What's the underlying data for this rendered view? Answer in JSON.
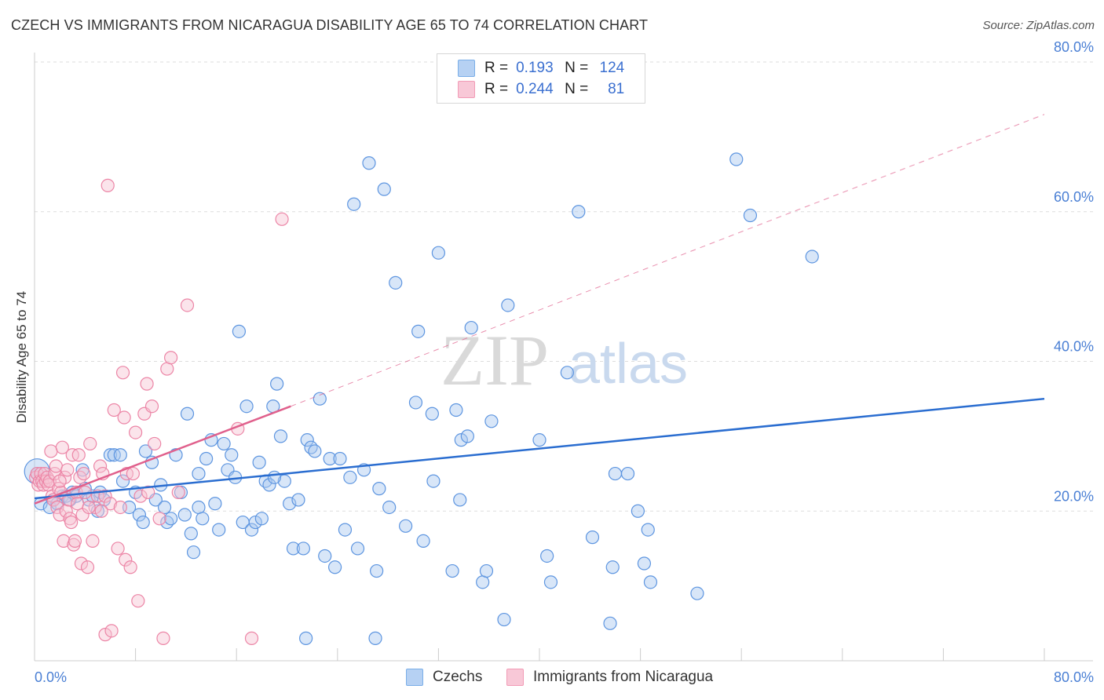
{
  "header": {
    "title": "CZECH VS IMMIGRANTS FROM NICARAGUA DISABILITY AGE 65 TO 74 CORRELATION CHART",
    "source": "Source: ZipAtlas.com"
  },
  "watermark": {
    "zip": "ZIP",
    "atlas": "atlas"
  },
  "legend": {
    "rows": [
      {
        "r_label": "R =",
        "r_value": "0.193",
        "n_label": "N =",
        "n_value": "124",
        "color": "#7aaee8"
      },
      {
        "r_label": "R =",
        "r_value": "0.244",
        "n_label": "N =",
        "n_value": "81",
        "color": "#f29bb6"
      }
    ]
  },
  "bottom_legend": {
    "czechs": "Czechs",
    "nicaragua": "Immigrants from Nicaragua"
  },
  "colors": {
    "czech_fill": "#a9c8f0",
    "czech_stroke": "#5d95e0",
    "czech_line": "#2a6dd0",
    "nic_fill": "#f7c3d3",
    "nic_stroke": "#ec85a6",
    "nic_line": "#e0608c",
    "tick": "#4a7fd4"
  },
  "chart_data": {
    "type": "scatter",
    "title": "CZECH VS IMMIGRANTS FROM NICARAGUA DISABILITY AGE 65 TO 74 CORRELATION CHART",
    "xlabel": "",
    "ylabel": "Disability Age 65 to 74",
    "xlim": [
      0,
      80
    ],
    "ylim": [
      0,
      80
    ],
    "x_tick_labels": [
      "0.0%",
      "80.0%"
    ],
    "y_tick_labels": [
      {
        "value": 20,
        "label": "20.0%"
      },
      {
        "value": 40,
        "label": "40.0%"
      },
      {
        "value": 60,
        "label": "60.0%"
      },
      {
        "value": 80,
        "label": "80.0%"
      }
    ],
    "grid": true,
    "legend_position": "top-center",
    "series": [
      {
        "name": "Czechs",
        "r": 0.193,
        "n": 124,
        "trend": {
          "x": [
            0,
            80
          ],
          "y": [
            21.7,
            35.0
          ],
          "style": "solid"
        },
        "points": [
          [
            0.2,
            25.0
          ],
          [
            0.5,
            21.0
          ],
          [
            1.2,
            20.5
          ],
          [
            1.5,
            21.5
          ],
          [
            1.8,
            21.0
          ],
          [
            2.2,
            22.0
          ],
          [
            2.5,
            22.0
          ],
          [
            2.8,
            21.5
          ],
          [
            3.0,
            22.5
          ],
          [
            3.3,
            22.0
          ],
          [
            3.8,
            25.5
          ],
          [
            4.0,
            23.0
          ],
          [
            4.3,
            21.5
          ],
          [
            4.6,
            22.0
          ],
          [
            5.0,
            20.0
          ],
          [
            5.2,
            22.5
          ],
          [
            5.5,
            21.5
          ],
          [
            6.0,
            27.5
          ],
          [
            6.3,
            27.5
          ],
          [
            6.8,
            27.5
          ],
          [
            7.0,
            24.0
          ],
          [
            7.5,
            20.5
          ],
          [
            8.0,
            22.5
          ],
          [
            8.3,
            19.5
          ],
          [
            8.6,
            18.5
          ],
          [
            8.8,
            28.0
          ],
          [
            9.3,
            26.5
          ],
          [
            9.6,
            21.5
          ],
          [
            10.0,
            23.5
          ],
          [
            10.3,
            20.5
          ],
          [
            10.5,
            18.5
          ],
          [
            10.8,
            19.0
          ],
          [
            11.2,
            27.5
          ],
          [
            11.6,
            22.5
          ],
          [
            11.9,
            19.5
          ],
          [
            12.1,
            33.0
          ],
          [
            12.4,
            17.0
          ],
          [
            12.6,
            14.5
          ],
          [
            13.0,
            20.5
          ],
          [
            13.3,
            19.0
          ],
          [
            13.6,
            27.0
          ],
          [
            14.0,
            29.5
          ],
          [
            14.3,
            21.0
          ],
          [
            14.6,
            17.5
          ],
          [
            15.0,
            29.0
          ],
          [
            15.3,
            25.5
          ],
          [
            15.6,
            27.5
          ],
          [
            15.9,
            24.5
          ],
          [
            16.2,
            44.0
          ],
          [
            16.5,
            18.5
          ],
          [
            16.8,
            34.0
          ],
          [
            17.2,
            17.5
          ],
          [
            17.5,
            18.5
          ],
          [
            17.8,
            26.5
          ],
          [
            18.0,
            19.0
          ],
          [
            18.3,
            24.0
          ],
          [
            18.6,
            23.5
          ],
          [
            18.9,
            34.0
          ],
          [
            19.2,
            37.0
          ],
          [
            19.5,
            30.0
          ],
          [
            19.8,
            24.0
          ],
          [
            20.2,
            21.0
          ],
          [
            20.5,
            15.0
          ],
          [
            20.9,
            21.5
          ],
          [
            21.3,
            15.0
          ],
          [
            21.6,
            29.5
          ],
          [
            21.9,
            28.5
          ],
          [
            22.2,
            28.0
          ],
          [
            22.6,
            35.0
          ],
          [
            23.0,
            14.0
          ],
          [
            23.4,
            27.0
          ],
          [
            23.8,
            12.5
          ],
          [
            24.2,
            27.0
          ],
          [
            24.6,
            17.5
          ],
          [
            25.0,
            24.5
          ],
          [
            25.3,
            61.0
          ],
          [
            25.6,
            15.0
          ],
          [
            26.1,
            25.5
          ],
          [
            26.5,
            66.5
          ],
          [
            27.0,
            3.0
          ],
          [
            27.3,
            23.0
          ],
          [
            27.7,
            63.0
          ],
          [
            28.1,
            20.5
          ],
          [
            28.6,
            50.5
          ],
          [
            29.4,
            18.0
          ],
          [
            30.2,
            34.5
          ],
          [
            30.4,
            44.0
          ],
          [
            30.8,
            16.0
          ],
          [
            31.5,
            33.0
          ],
          [
            31.6,
            24.0
          ],
          [
            32.0,
            54.5
          ],
          [
            33.1,
            12.0
          ],
          [
            33.4,
            33.5
          ],
          [
            33.7,
            21.5
          ],
          [
            33.8,
            29.5
          ],
          [
            34.3,
            30.0
          ],
          [
            34.6,
            44.5
          ],
          [
            35.5,
            10.5
          ],
          [
            35.8,
            12.0
          ],
          [
            36.2,
            32.0
          ],
          [
            37.2,
            5.5
          ],
          [
            37.5,
            47.5
          ],
          [
            40.0,
            29.5
          ],
          [
            40.6,
            14.0
          ],
          [
            40.9,
            10.5
          ],
          [
            42.2,
            38.5
          ],
          [
            43.1,
            60.0
          ],
          [
            44.2,
            16.5
          ],
          [
            45.6,
            5.0
          ],
          [
            45.8,
            12.5
          ],
          [
            46.0,
            25.0
          ],
          [
            47.0,
            25.0
          ],
          [
            47.8,
            20.0
          ],
          [
            48.3,
            13.0
          ],
          [
            48.6,
            17.5
          ],
          [
            48.8,
            10.5
          ],
          [
            52.5,
            9.0
          ],
          [
            55.6,
            67.0
          ],
          [
            56.7,
            59.5
          ],
          [
            61.6,
            54.0
          ],
          [
            19.0,
            24.5
          ],
          [
            21.5,
            3.0
          ],
          [
            27.1,
            12.0
          ],
          [
            13.0,
            25.0
          ]
        ]
      },
      {
        "name": "Immigrants from Nicaragua",
        "r": 0.244,
        "n": 81,
        "trend": {
          "x": [
            0,
            20.3
          ],
          "y": [
            21.0,
            34.0
          ],
          "style": "solid",
          "extension_x": [
            20.3,
            80
          ],
          "extension_y": [
            34.0,
            73.0
          ]
        },
        "points": [
          [
            0.1,
            24.5
          ],
          [
            0.2,
            25.0
          ],
          [
            0.3,
            23.5
          ],
          [
            0.4,
            24.0
          ],
          [
            0.5,
            25.0
          ],
          [
            0.6,
            24.0
          ],
          [
            0.7,
            23.5
          ],
          [
            0.8,
            25.0
          ],
          [
            0.9,
            24.0
          ],
          [
            1.0,
            24.5
          ],
          [
            1.1,
            23.5
          ],
          [
            1.2,
            24.0
          ],
          [
            1.3,
            28.0
          ],
          [
            1.4,
            22.0
          ],
          [
            1.5,
            21.5
          ],
          [
            1.6,
            25.0
          ],
          [
            1.7,
            26.0
          ],
          [
            1.8,
            20.5
          ],
          [
            1.9,
            23.0
          ],
          [
            2.0,
            19.5
          ],
          [
            2.1,
            22.5
          ],
          [
            2.2,
            28.5
          ],
          [
            2.3,
            16.0
          ],
          [
            2.4,
            24.5
          ],
          [
            2.5,
            20.0
          ],
          [
            2.6,
            25.5
          ],
          [
            2.7,
            21.5
          ],
          [
            2.8,
            19.0
          ],
          [
            2.9,
            18.5
          ],
          [
            3.0,
            27.5
          ],
          [
            3.1,
            15.5
          ],
          [
            3.2,
            16.0
          ],
          [
            3.3,
            22.5
          ],
          [
            3.4,
            21.0
          ],
          [
            3.5,
            27.5
          ],
          [
            3.6,
            24.5
          ],
          [
            3.7,
            13.0
          ],
          [
            3.8,
            19.5
          ],
          [
            3.9,
            25.0
          ],
          [
            4.0,
            22.5
          ],
          [
            4.2,
            12.5
          ],
          [
            4.4,
            29.0
          ],
          [
            4.6,
            16.0
          ],
          [
            4.8,
            20.5
          ],
          [
            5.0,
            22.0
          ],
          [
            5.2,
            26.0
          ],
          [
            5.4,
            25.0
          ],
          [
            5.6,
            22.0
          ],
          [
            5.8,
            63.5
          ],
          [
            5.6,
            3.5
          ],
          [
            6.0,
            21.0
          ],
          [
            6.3,
            33.5
          ],
          [
            6.6,
            15.0
          ],
          [
            6.8,
            20.5
          ],
          [
            7.0,
            38.5
          ],
          [
            7.1,
            32.5
          ],
          [
            7.2,
            13.5
          ],
          [
            7.3,
            25.0
          ],
          [
            7.6,
            12.5
          ],
          [
            7.8,
            25.0
          ],
          [
            8.0,
            30.5
          ],
          [
            8.2,
            8.0
          ],
          [
            8.4,
            22.0
          ],
          [
            8.7,
            33.0
          ],
          [
            8.9,
            37.0
          ],
          [
            9.0,
            22.5
          ],
          [
            9.3,
            34.0
          ],
          [
            9.5,
            29.0
          ],
          [
            9.9,
            19.0
          ],
          [
            10.2,
            3.0
          ],
          [
            10.5,
            39.0
          ],
          [
            10.8,
            40.5
          ],
          [
            11.4,
            22.5
          ],
          [
            12.1,
            47.5
          ],
          [
            16.1,
            31.0
          ],
          [
            17.2,
            3.0
          ],
          [
            19.6,
            59.0
          ],
          [
            6.1,
            4.0
          ],
          [
            5.3,
            20.0
          ],
          [
            4.3,
            20.5
          ],
          [
            2.0,
            24.0
          ]
        ]
      }
    ]
  }
}
